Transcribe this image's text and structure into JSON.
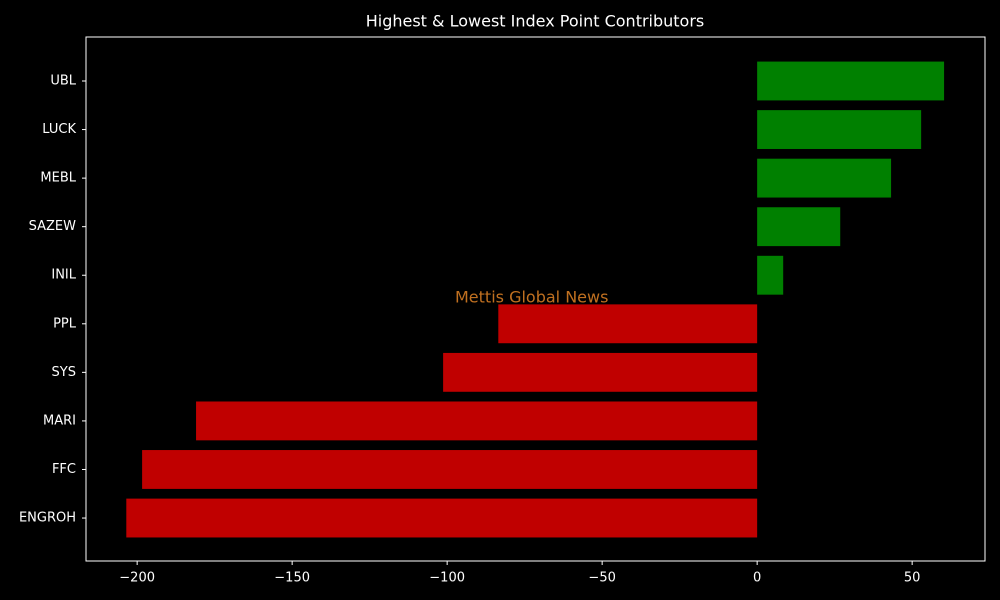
{
  "chart_data": {
    "type": "barh",
    "title": "Highest & Lowest Index Point Contributors",
    "watermark": "Mettis Global News",
    "categories": [
      "UBL",
      "LUCK",
      "MEBL",
      "SAZEW",
      "INIL",
      "PPL",
      "SYS",
      "MARI",
      "FFC",
      "ENGROH"
    ],
    "values": [
      60.3,
      52.9,
      43.2,
      26.8,
      8.4,
      -83.5,
      -101.3,
      -181.0,
      -198.4,
      -203.5
    ],
    "colors": [
      "#008000",
      "#008000",
      "#008000",
      "#008000",
      "#008000",
      "#c00000",
      "#c00000",
      "#c00000",
      "#c00000",
      "#c00000"
    ],
    "xlim": [
      -216.5,
      73.5
    ],
    "xticks": [
      {
        "value": -200,
        "label": "−200"
      },
      {
        "value": -150,
        "label": "−150"
      },
      {
        "value": -100,
        "label": "−100"
      },
      {
        "value": -50,
        "label": "−50"
      },
      0,
      50
    ]
  }
}
